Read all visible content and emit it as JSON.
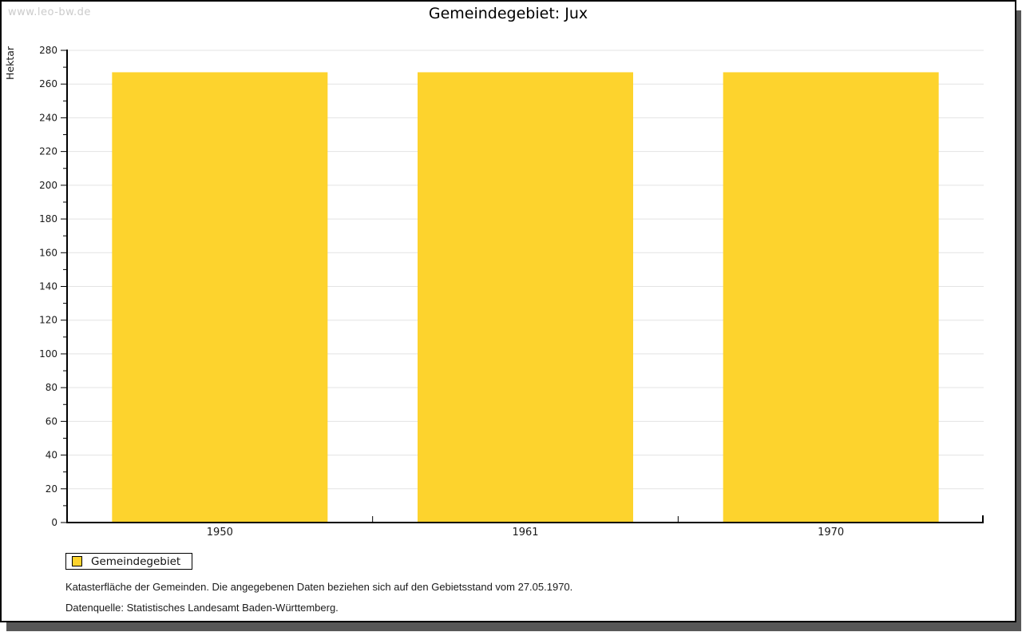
{
  "watermark": {
    "text": "www.leo-bw.de"
  },
  "title": "Gemeindegebiet: Jux",
  "chart_data": {
    "type": "bar",
    "title": "Gemeindegebiet: Jux",
    "ylabel": "Hektar",
    "xlabel": "",
    "categories": [
      "1950",
      "1961",
      "1970"
    ],
    "series": [
      {
        "name": "Gemeindegebiet",
        "values": [
          267,
          267,
          267
        ],
        "color": "#FDD32D"
      }
    ],
    "ylim": [
      0,
      280
    ],
    "y_major_step": 20,
    "y_minor_step": 10,
    "grid": true,
    "legend_position": "bottom-left"
  },
  "legend": {
    "items": [
      {
        "label": "Gemeindegebiet",
        "color": "#FDD32D"
      }
    ]
  },
  "footer": {
    "line1": "Katasterfläche der Gemeinden. Die angegebenen Daten beziehen sich auf den Gebietsstand vom 27.05.1970.",
    "line2": "Datenquelle: Statistisches Landesamt Baden-Württemberg."
  },
  "colors": {
    "bar": "#FDD32D",
    "grid": "#E3E3E3",
    "axis": "#000000",
    "text": "#1A1A1A",
    "watermark": "#CBCBCB",
    "shadow": "#575757",
    "panel_border": "#000000",
    "background": "#FFFFFF"
  }
}
